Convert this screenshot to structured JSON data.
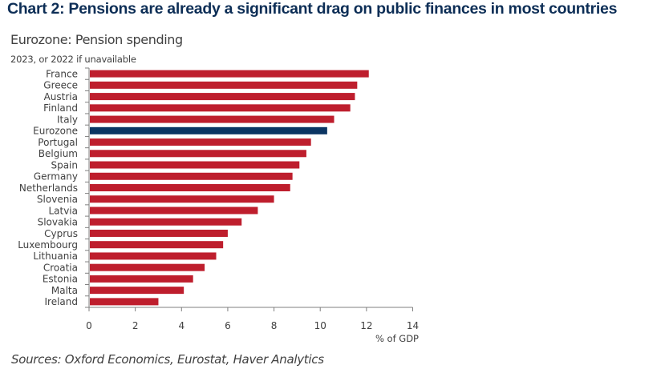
{
  "header": {
    "title": "Chart 2: Pensions are already a significant drag on public finances in most countries"
  },
  "chart_data": {
    "type": "bar",
    "orientation": "horizontal",
    "title": "Eurozone: Pension spending",
    "subtitle": "2023, or 2022 if unavailable",
    "xlabel": "% of GDP",
    "ylabel": "",
    "xlim": [
      0,
      14
    ],
    "xticks": [
      0,
      2,
      4,
      6,
      8,
      10,
      12,
      14
    ],
    "grid": false,
    "legend": "none",
    "categories": [
      "France",
      "Greece",
      "Austria",
      "Finland",
      "Italy",
      "Eurozone",
      "Portugal",
      "Belgium",
      "Spain",
      "Germany",
      "Netherlands",
      "Slovenia",
      "Latvia",
      "Slovakia",
      "Cyprus",
      "Luxembourg",
      "Lithuania",
      "Croatia",
      "Estonia",
      "Malta",
      "Ireland"
    ],
    "values": [
      12.1,
      11.6,
      11.5,
      11.3,
      10.6,
      10.3,
      9.6,
      9.4,
      9.1,
      8.8,
      8.7,
      8.0,
      7.3,
      6.6,
      6.0,
      5.8,
      5.5,
      5.0,
      4.5,
      4.1,
      3.0
    ],
    "highlight": "Eurozone",
    "colors": {
      "default": "#be1e2d",
      "highlight": "#0b3563"
    },
    "source": "Sources: Oxford Economics, Eurostat, Haver Analytics"
  }
}
